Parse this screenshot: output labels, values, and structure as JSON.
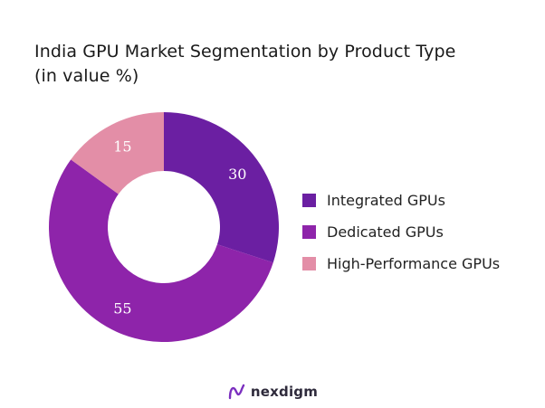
{
  "chart_data": {
    "type": "pie",
    "title_line1": "India GPU Market Segmentation by Product Type",
    "title_line2": "(in value %)",
    "categories": [
      "Integrated GPUs",
      "Dedicated GPUs",
      "High-Performance GPUs"
    ],
    "values": [
      30,
      55,
      15
    ],
    "colors": [
      "#6b1fa2",
      "#8e24aa",
      "#e38ea7"
    ],
    "donut": true,
    "legend_position": "right"
  },
  "brand": {
    "name": "nexdigm",
    "logo_icon": "nexdigm-logo-icon"
  }
}
